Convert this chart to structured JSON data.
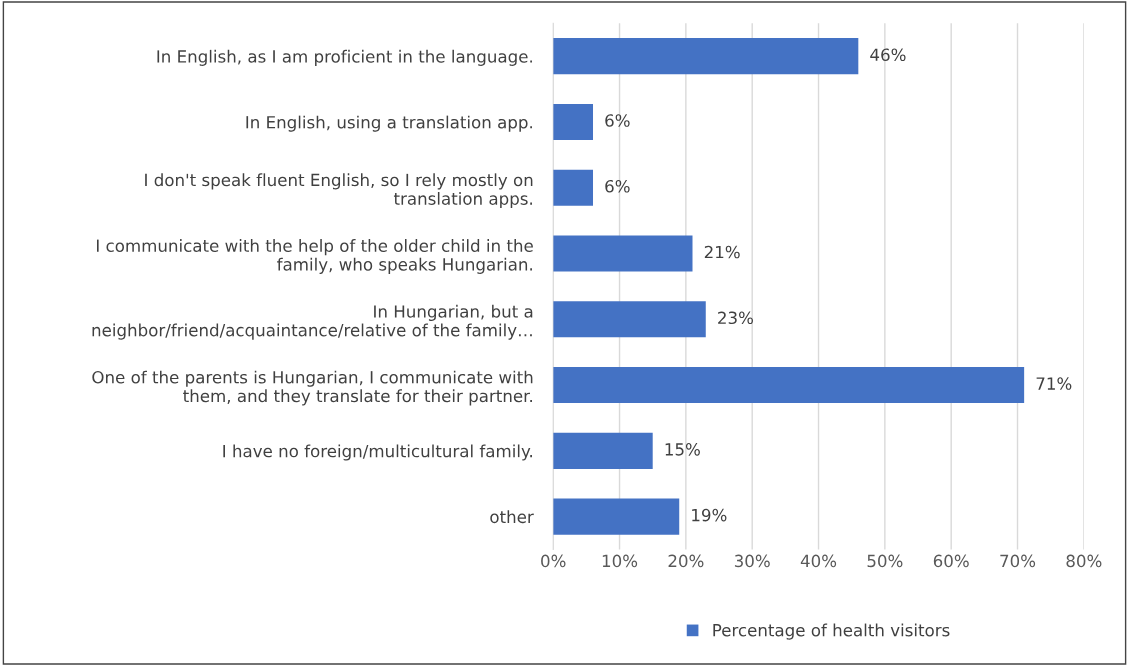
{
  "chart_data": {
    "type": "bar",
    "orientation": "horizontal",
    "categories": [
      "In English, as I am proficient in the language.",
      "In English, using a translation app.",
      "I don't speak fluent English, so I rely mostly on\ntranslation apps.",
      "I communicate with the help of the older child in the\nfamily, who speaks Hungarian.",
      "In Hungarian, but a\nneighbor/friend/acquaintance/relative of the family…",
      "One of the parents is Hungarian, I communicate with\nthem, and they translate for their partner.",
      "I have no foreign/multicultural family.",
      "other"
    ],
    "series": [
      {
        "name": "Percentage of health visitors",
        "color": "#4472c4",
        "values": [
          46,
          6,
          6,
          21,
          23,
          71,
          15,
          19
        ],
        "value_labels": [
          "46%",
          "6%",
          "6%",
          "21%",
          "23%",
          "71%",
          "15%",
          "19%"
        ]
      }
    ],
    "xlim": [
      0,
      80
    ],
    "xticks": [
      {
        "value": 0,
        "label": "0%"
      },
      {
        "value": 10,
        "label": "10%"
      },
      {
        "value": 20,
        "label": "20%"
      },
      {
        "value": 30,
        "label": "30%"
      },
      {
        "value": 40,
        "label": "40%"
      },
      {
        "value": 50,
        "label": "50%"
      },
      {
        "value": 60,
        "label": "60%"
      },
      {
        "value": 70,
        "label": "70%"
      },
      {
        "value": 80,
        "label": "80%"
      }
    ],
    "grid": "x",
    "legend": "bottom"
  }
}
